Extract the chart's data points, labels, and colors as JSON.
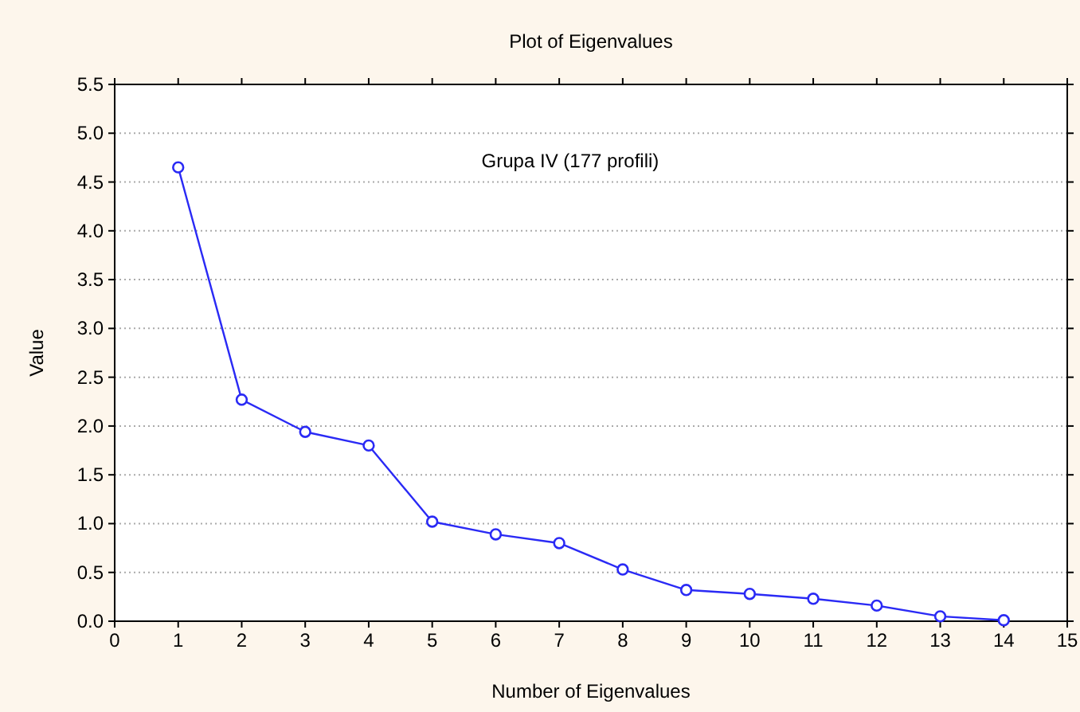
{
  "chart_data": {
    "type": "line",
    "title": "Plot of Eigenvalues",
    "xlabel": "Number of Eigenvalues",
    "ylabel": "Value",
    "annotations": [
      "Grupa IV (177 profili)"
    ],
    "x": [
      1,
      2,
      3,
      4,
      5,
      6,
      7,
      8,
      9,
      10,
      11,
      12,
      13,
      14
    ],
    "series": [
      {
        "color": "#2a2af5",
        "values": [
          4.65,
          2.27,
          1.94,
          1.8,
          1.02,
          0.89,
          0.8,
          0.53,
          0.32,
          0.28,
          0.23,
          0.16,
          0.05,
          0.01
        ]
      }
    ],
    "xlim": [
      0,
      15
    ],
    "xticks": [
      0,
      1,
      2,
      3,
      4,
      5,
      6,
      7,
      8,
      9,
      10,
      11,
      12,
      13,
      14,
      15
    ],
    "ylim": [
      0,
      5.5
    ],
    "yticks": [
      {
        "value": 0,
        "label": "0.0"
      },
      {
        "value": 0.5,
        "label": "0.5"
      },
      {
        "value": 1,
        "label": "1.0"
      },
      {
        "value": 1.5,
        "label": "1.5"
      },
      {
        "value": 2,
        "label": "2.0"
      },
      {
        "value": 2.5,
        "label": "2.5"
      },
      {
        "value": 3,
        "label": "3.0"
      },
      {
        "value": 3.5,
        "label": "3.5"
      },
      {
        "value": 4,
        "label": "4.0"
      },
      {
        "value": 4.5,
        "label": "4.5"
      },
      {
        "value": 5,
        "label": "5.0"
      },
      {
        "value": 5.5,
        "label": "5.5"
      }
    ],
    "grid": "y",
    "marker": "circle",
    "line_style": "solid"
  }
}
